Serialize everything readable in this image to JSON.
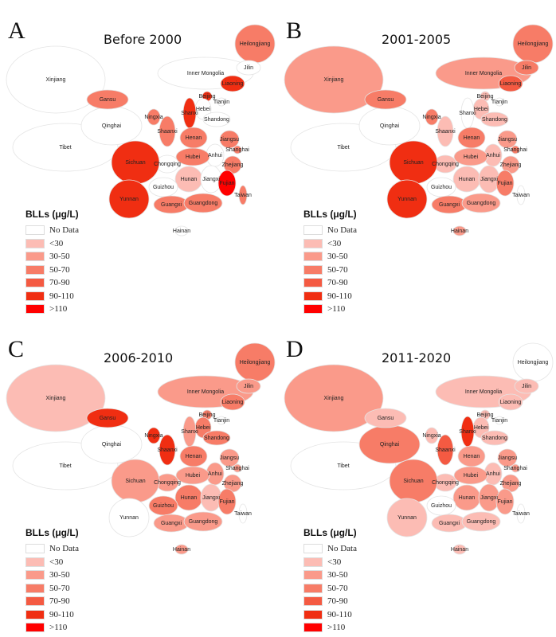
{
  "legend": {
    "title": "BLLs (μg/L)",
    "classes": [
      {
        "label": "No Data",
        "color": "#ffffff"
      },
      {
        "label": "<30",
        "color": "#fcbcb4"
      },
      {
        "label": "30-50",
        "color": "#fa9a8a"
      },
      {
        "label": "50-70",
        "color": "#f77c67"
      },
      {
        "label": "70-90",
        "color": "#f45a42"
      },
      {
        "label": "90-110",
        "color": "#f02e12"
      },
      {
        "label": ">110",
        "color": "#ff0000"
      }
    ]
  },
  "provinces": [
    "Xinjiang",
    "Tibet",
    "Qinghai",
    "Gansu",
    "Inner Mongolia",
    "Heilongjiang",
    "Jilin",
    "Liaoning",
    "Beijing",
    "Tianjin",
    "Hebei",
    "Shanxi",
    "Shandong",
    "Ningxia",
    "Shaanxi",
    "Henan",
    "Jiangsu",
    "Shanghai",
    "Anhui",
    "Hubei",
    "Zhejiang",
    "Chongqing",
    "Sichuan",
    "Hunan",
    "Jiangxi",
    "Fujian",
    "Guizhou",
    "Yunnan",
    "Guangxi",
    "Guangdong",
    "Taiwan",
    "Hainan"
  ],
  "panels": [
    {
      "letter": "A",
      "title": "Before 2000",
      "classes": [
        0,
        0,
        0,
        3,
        0,
        3,
        0,
        5,
        5,
        0,
        0,
        5,
        0,
        3,
        3,
        3,
        3,
        3,
        0,
        3,
        3,
        0,
        5,
        1,
        0,
        6,
        0,
        5,
        3,
        3,
        3,
        0
      ]
    },
    {
      "letter": "B",
      "title": "2001-2005",
      "classes": [
        2,
        0,
        0,
        3,
        2,
        3,
        3,
        4,
        1,
        0,
        1,
        0,
        1,
        3,
        1,
        3,
        2,
        3,
        1,
        2,
        2,
        1,
        5,
        1,
        1,
        3,
        0,
        5,
        3,
        2,
        0,
        2
      ]
    },
    {
      "letter": "C",
      "title": "2006-2010",
      "classes": [
        1,
        0,
        0,
        5,
        2,
        3,
        2,
        3,
        3,
        0,
        3,
        2,
        3,
        5,
        5,
        3,
        2,
        2,
        2,
        2,
        2,
        2,
        2,
        3,
        1,
        3,
        3,
        0,
        2,
        2,
        0,
        2
      ]
    },
    {
      "letter": "D",
      "title": "2011-2020",
      "classes": [
        2,
        0,
        3,
        1,
        1,
        0,
        1,
        1,
        1,
        0,
        1,
        5,
        1,
        1,
        4,
        2,
        2,
        2,
        1,
        2,
        2,
        1,
        3,
        2,
        2,
        2,
        0,
        1,
        1,
        1,
        0,
        1
      ]
    }
  ]
}
